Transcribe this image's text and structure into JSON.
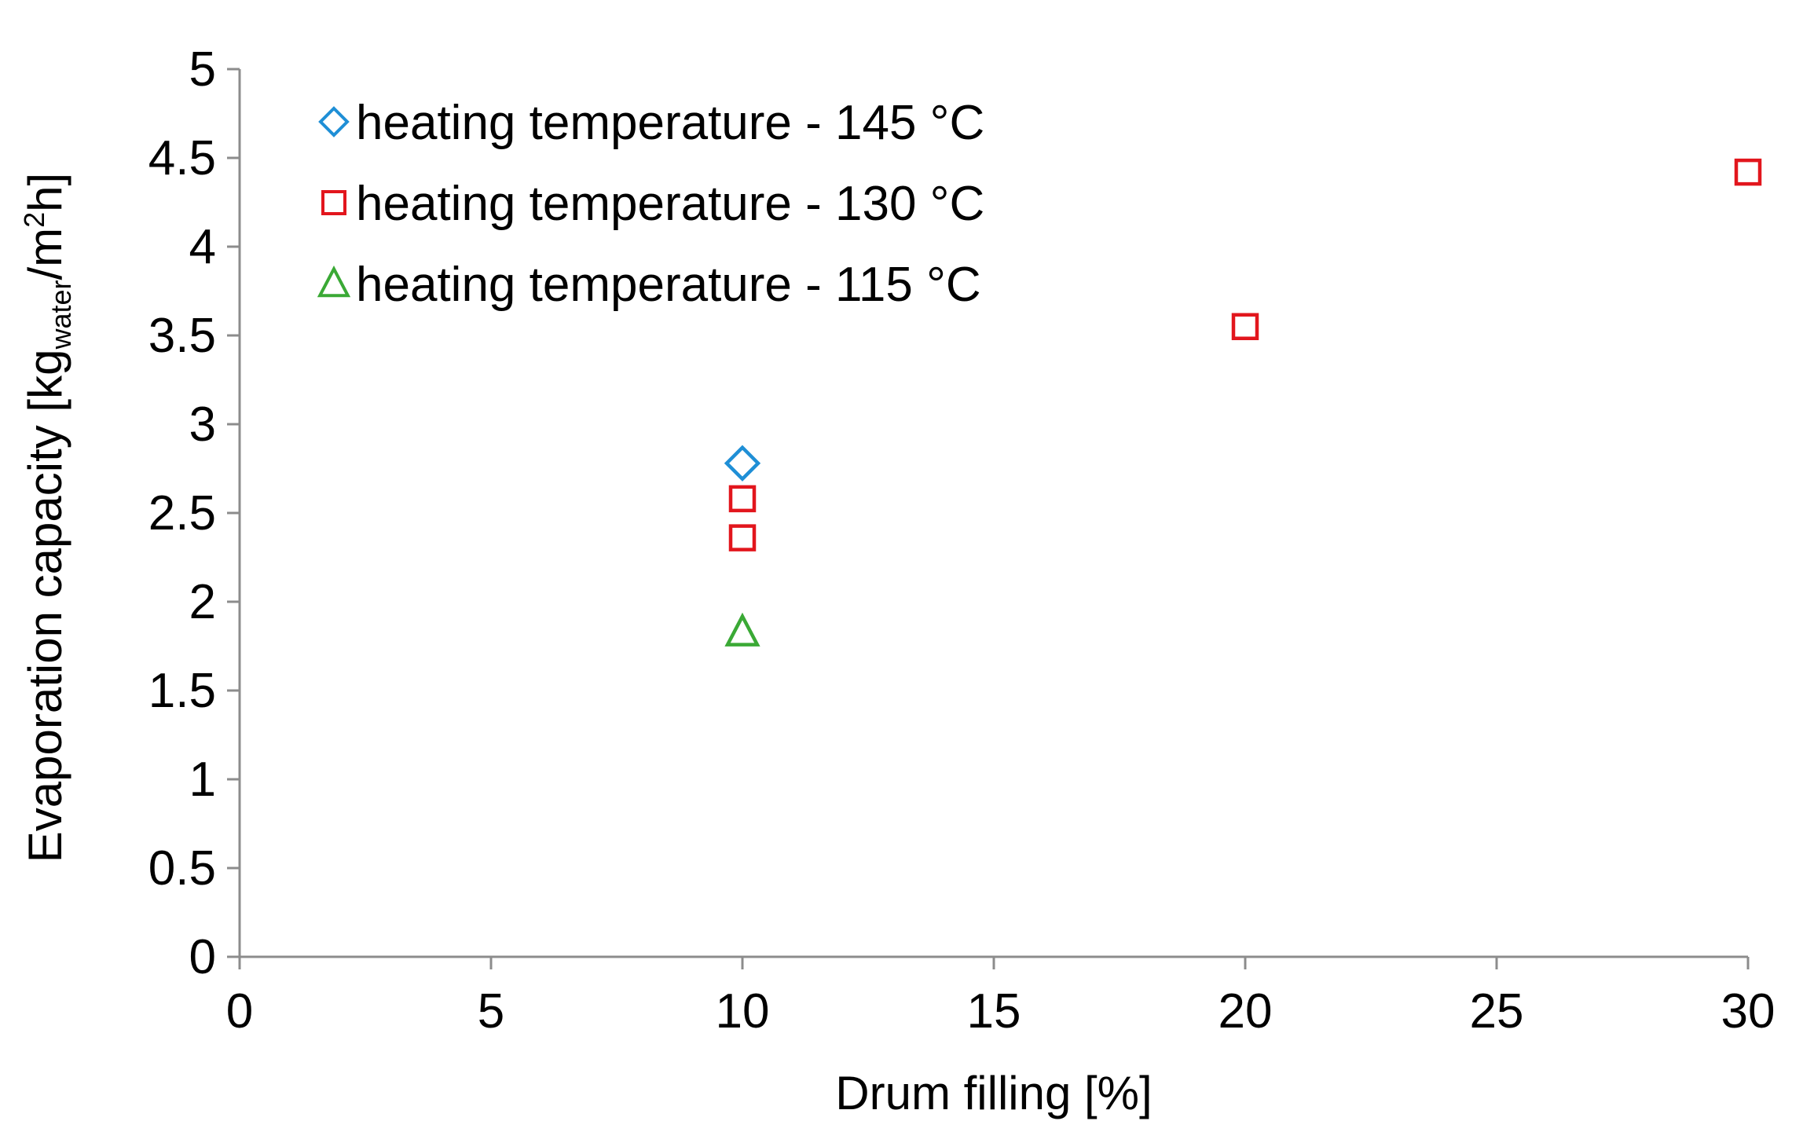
{
  "chart_data": {
    "type": "scatter",
    "title": "",
    "xlabel": "Drum filling [%]",
    "ylabel": {
      "main": "Evaporation capacity [kg",
      "sub": "water",
      "mid": "/m",
      "sup": "2",
      "end": "h]"
    },
    "xlim": [
      0,
      30
    ],
    "ylim": [
      0,
      5
    ],
    "x_ticks": [
      0,
      5,
      10,
      15,
      20,
      25,
      30
    ],
    "x_tick_labels": [
      "0",
      "5",
      "10",
      "15",
      "20",
      "25",
      "30"
    ],
    "y_ticks": [
      0,
      0.5,
      1,
      1.5,
      2,
      2.5,
      3,
      3.5,
      4,
      4.5,
      5
    ],
    "y_tick_labels": [
      "0",
      "0.5",
      "1",
      "1.5",
      "2",
      "2.5",
      "3",
      "3.5",
      "4",
      "4.5",
      "5"
    ],
    "grid": false,
    "legend_position": "top-left",
    "series": [
      {
        "name": "heating temperature - 145 °C",
        "marker": "diamond",
        "color": "#1f8fd6",
        "points": [
          {
            "x": 10,
            "y": 2.78
          }
        ]
      },
      {
        "name": "heating temperature - 130 °C",
        "marker": "square",
        "color": "#e2161d",
        "points": [
          {
            "x": 10,
            "y": 2.58
          },
          {
            "x": 10,
            "y": 2.36
          },
          {
            "x": 20,
            "y": 3.55
          },
          {
            "x": 30,
            "y": 4.42
          }
        ]
      },
      {
        "name": "heating temperature - 115 °C",
        "marker": "triangle",
        "color": "#3aa935",
        "points": [
          {
            "x": 10,
            "y": 1.83
          }
        ]
      }
    ]
  }
}
